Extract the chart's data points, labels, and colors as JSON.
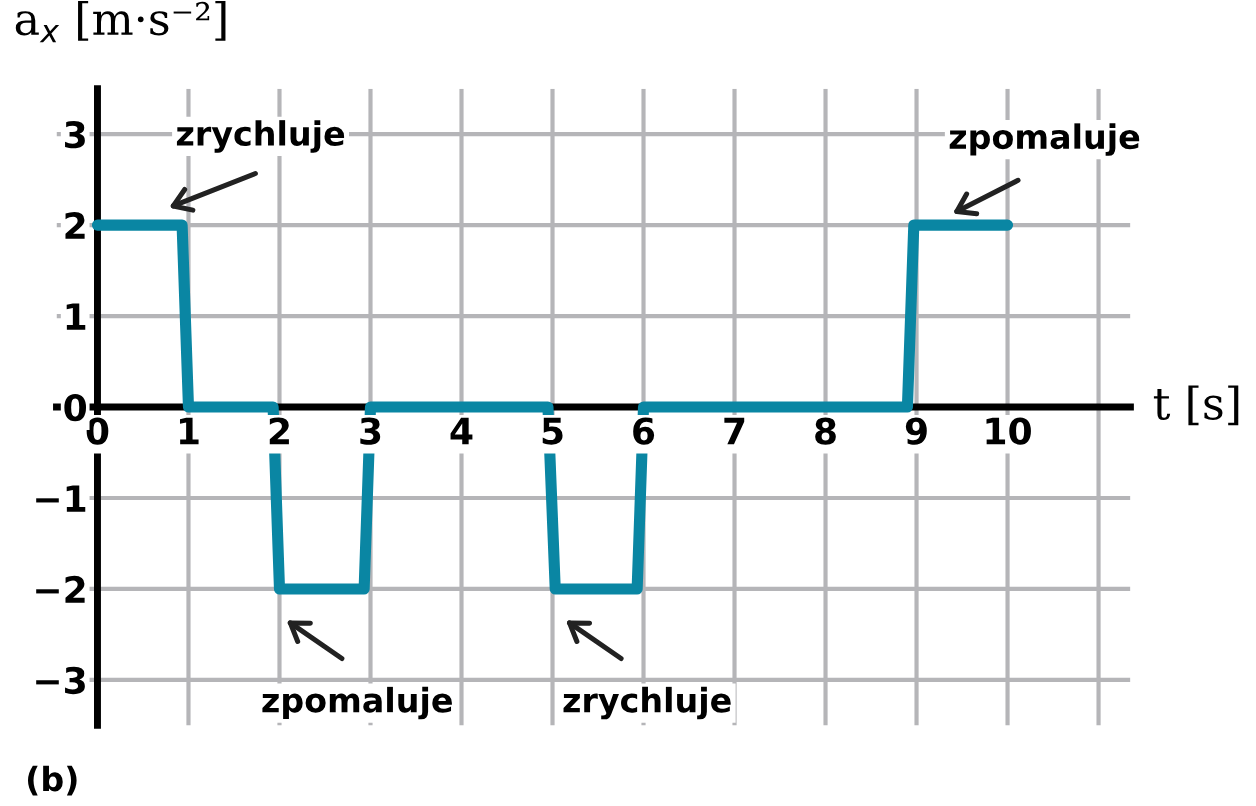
{
  "chart_data": {
    "type": "line",
    "xlabel": "t [s]",
    "ylabel": "a$_{x}$ [m·s⁻²]",
    "series": [
      {
        "color": "#0a86a3",
        "x": [
          0,
          0.93,
          1.0,
          1.93,
          2.0,
          2.93,
          3.0,
          4.95,
          5.03,
          5.93,
          6.0,
          8.9,
          8.97,
          10
        ],
        "values": [
          2,
          2,
          0,
          0,
          -2,
          -2,
          0,
          0,
          -2,
          -2,
          0,
          0,
          2,
          2
        ]
      }
    ],
    "xlim": [
      -0.45,
      11.35
    ],
    "ylim": [
      -3.5,
      3.5
    ],
    "xticks": [
      0,
      1,
      2,
      3,
      4,
      5,
      6,
      7,
      8,
      9,
      10,
      {
        "value": 11,
        "label": null
      }
    ],
    "yticks": [
      -3,
      -2,
      -1,
      0,
      1,
      2,
      3
    ],
    "grid": true,
    "marker": "none",
    "line_style": "solid",
    "legend": false,
    "annotations": [
      "zrychluje",
      "zpomaluje",
      "zrychluje",
      "zpomaluje",
      "(b)"
    ]
  }
}
